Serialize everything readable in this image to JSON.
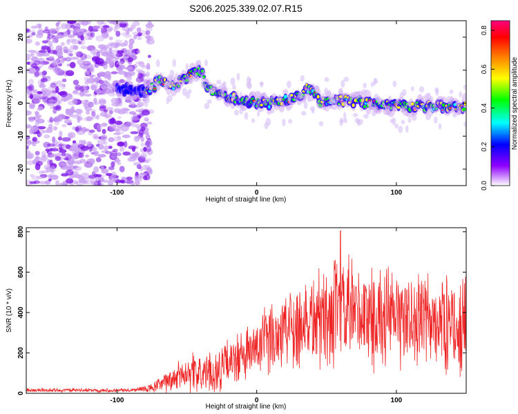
{
  "title": "S206.2025.339.02.07.R15",
  "chart_data": [
    {
      "type": "heatmap",
      "name": "spectrogram",
      "xlabel": "Height of straight line (km)",
      "ylabel": "Frequency (Hz)",
      "xlim": [
        -165,
        150
      ],
      "ylim": [
        -25,
        25
      ],
      "x_ticks": [
        -100,
        0,
        100
      ],
      "y_ticks": [
        -20,
        -10,
        0,
        10,
        20
      ],
      "grid": false,
      "colorbar": {
        "label": "Normalized spectral amplitude",
        "range": [
          0,
          0.85
        ],
        "ticks": [
          0.0,
          0.2,
          0.4,
          0.6,
          0.8
        ],
        "colormap": [
          "#ffffff",
          "#8f00ff",
          "#0000ff",
          "#00ffff",
          "#00ff00",
          "#ffff00",
          "#ff8000",
          "#ff0000",
          "#ff0080"
        ]
      },
      "noise_region_x": [
        -165,
        -80
      ],
      "ridge": {
        "x": [
          -95,
          -85,
          -78,
          -70,
          -60,
          -50,
          -40,
          -35,
          -30,
          -20,
          -10,
          0,
          10,
          20,
          30,
          38,
          45,
          60,
          80,
          100,
          120,
          140,
          150
        ],
        "y": [
          4,
          4,
          3,
          7,
          5,
          8,
          10,
          5,
          3,
          2,
          0.5,
          0,
          0,
          1,
          2,
          5,
          0.5,
          1,
          0,
          -1,
          -1,
          -1,
          -1
        ]
      }
    },
    {
      "type": "line",
      "name": "snr",
      "xlabel": "Height of straight line (km)",
      "ylabel": "SNR (10 * v/v)",
      "xlim": [
        -165,
        150
      ],
      "ylim": [
        0,
        820
      ],
      "x_ticks": [
        -100,
        0,
        100
      ],
      "y_ticks": [
        0,
        200,
        400,
        600,
        800
      ],
      "color": "#ee2222",
      "envelope": {
        "x": [
          -165,
          -90,
          -75,
          -60,
          -50,
          -40,
          -30,
          -20,
          -10,
          0,
          10,
          20,
          30,
          50,
          60,
          80,
          100,
          120,
          140,
          150
        ],
        "mean": [
          15,
          15,
          25,
          70,
          110,
          95,
          100,
          150,
          180,
          220,
          270,
          330,
          350,
          380,
          390,
          380,
          370,
          360,
          340,
          330
        ],
        "spread": [
          8,
          8,
          20,
          55,
          80,
          80,
          90,
          100,
          110,
          130,
          150,
          180,
          200,
          220,
          240,
          220,
          200,
          200,
          200,
          190
        ],
        "peak_x": 60,
        "peak_y": 805
      }
    }
  ]
}
